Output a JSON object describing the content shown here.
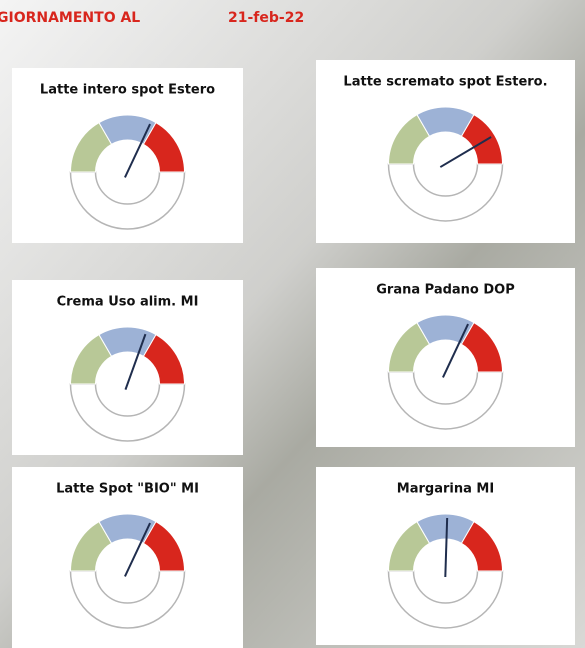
{
  "header": {
    "label": "GIORNAMENTO AL",
    "date": "21-feb-22"
  },
  "chart_data": [
    {
      "type": "gauge",
      "title": "Latte intero spot Estero",
      "ylim": [
        0,
        100
      ],
      "value": 64,
      "colors": [
        "#b8c897",
        "#9db2d6",
        "#d8261d"
      ],
      "needle_color": "#1f2d4d"
    },
    {
      "type": "gauge",
      "title": "Latte scremato spot Estero.",
      "ylim": [
        0,
        100
      ],
      "value": 83,
      "colors": [
        "#b8c897",
        "#9db2d6",
        "#d8261d"
      ],
      "needle_color": "#1f2d4d"
    },
    {
      "type": "gauge",
      "title": "Crema Uso alim. MI",
      "ylim": [
        0,
        100
      ],
      "value": 61,
      "colors": [
        "#b8c897",
        "#9db2d6",
        "#d8261d"
      ],
      "needle_color": "#1f2d4d"
    },
    {
      "type": "gauge",
      "title": "Grana Padano DOP",
      "ylim": [
        0,
        100
      ],
      "value": 64,
      "colors": [
        "#b8c897",
        "#9db2d6",
        "#d8261d"
      ],
      "needle_color": "#1f2d4d"
    },
    {
      "type": "gauge",
      "title": "Latte Spot \"BIO\" MI",
      "ylim": [
        0,
        100
      ],
      "value": 64,
      "colors": [
        "#b8c897",
        "#9db2d6",
        "#d8261d"
      ],
      "needle_color": "#1f2d4d"
    },
    {
      "type": "gauge",
      "title": "Margarina MI",
      "ylim": [
        0,
        100
      ],
      "value": 51,
      "colors": [
        "#b8c897",
        "#9db2d6",
        "#d8261d"
      ],
      "needle_color": "#1f2d4d"
    }
  ]
}
